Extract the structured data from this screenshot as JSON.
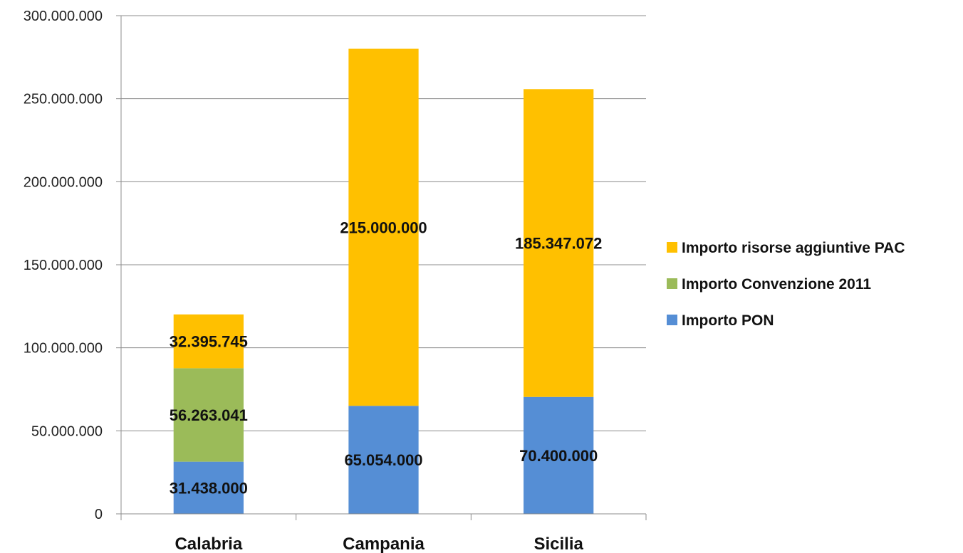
{
  "chart_data": {
    "type": "bar",
    "stacked": true,
    "categories": [
      "Calabria",
      "Campania",
      "Sicilia"
    ],
    "series": [
      {
        "name": "Importo PON",
        "color": "#558ED5",
        "values": [
          31438000,
          65054000,
          70400000
        ],
        "labels": [
          "31.438.000",
          "65.054.000",
          "70.400.000"
        ]
      },
      {
        "name": "Importo Convenzione 2011",
        "color": "#9BBB59",
        "values": [
          56263041,
          0,
          0
        ],
        "labels": [
          "56.263.041",
          "",
          ""
        ]
      },
      {
        "name": "Importo risorse aggiuntive PAC",
        "color": "#FFC000",
        "values": [
          32395745,
          215000000,
          185347072
        ],
        "labels": [
          "32.395.745",
          "215.000.000",
          "185.347.072"
        ]
      }
    ],
    "ylim": [
      0,
      300000000
    ],
    "yticks": [
      0,
      50000000,
      100000000,
      150000000,
      200000000,
      250000000,
      300000000
    ],
    "ytick_labels": [
      "0",
      "50.000.000",
      "100.000.000",
      "150.000.000",
      "200.000.000",
      "250.000.000",
      "300.000.000"
    ],
    "grid": true,
    "legend_position": "right",
    "legend_order": [
      "Importo risorse aggiuntive PAC",
      "Importo Convenzione 2011",
      "Importo PON"
    ]
  }
}
